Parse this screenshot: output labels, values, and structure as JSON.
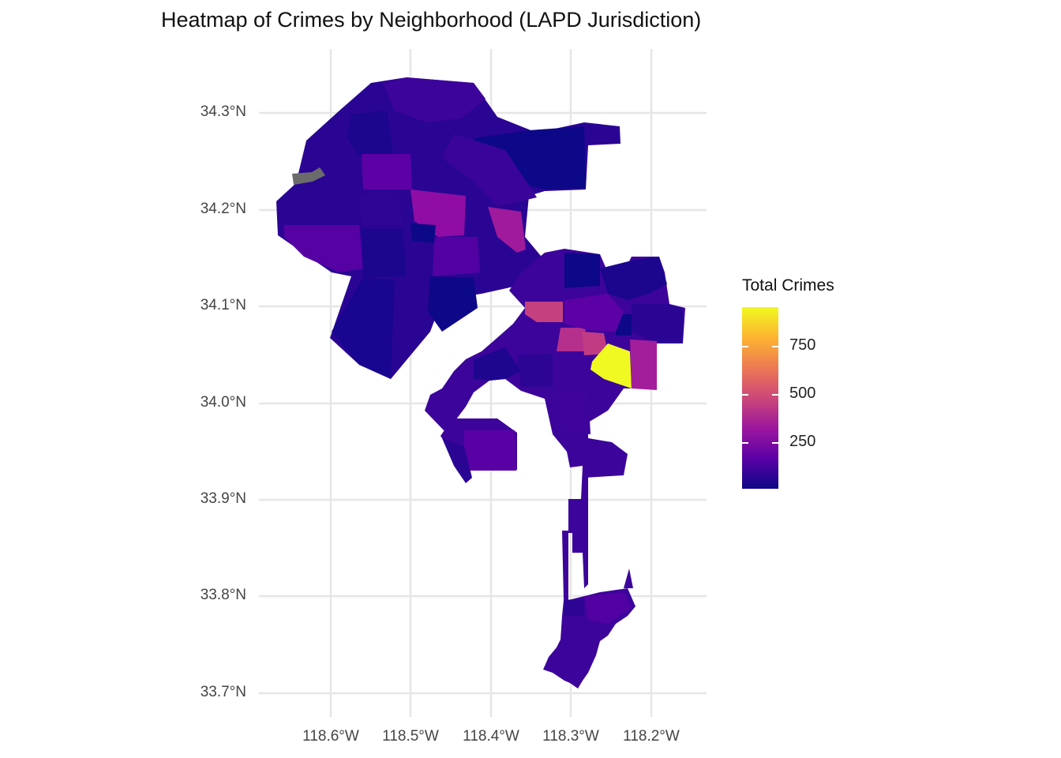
{
  "title": "Heatmap of Crimes by Neighborhood (LAPD Jurisdiction)",
  "axes": {
    "y_ticks": [
      "34.3°N",
      "34.2°N",
      "34.1°N",
      "34.0°N",
      "33.9°N",
      "33.8°N",
      "33.7°N"
    ],
    "x_ticks": [
      "118.6°W",
      "118.5°W",
      "118.4°W",
      "118.3°W",
      "118.2°W"
    ]
  },
  "legend": {
    "title": "Total Crimes",
    "labels": [
      "750",
      "500",
      "250"
    ]
  },
  "colors": {
    "scale": [
      "#0d0887",
      "#5c01a6",
      "#9c179e",
      "#cc4778",
      "#ed7953",
      "#fdb42f",
      "#f0f921"
    ],
    "na": "#6b6b6b",
    "grid": "#e6e6e6"
  },
  "chart_data": {
    "type": "heatmap",
    "title": "Heatmap of Crimes by Neighborhood (LAPD Jurisdiction)",
    "xlabel": "",
    "ylabel": "",
    "x_ticks": [
      "118.6°W",
      "118.5°W",
      "118.4°W",
      "118.3°W",
      "118.2°W"
    ],
    "y_ticks": [
      "34.3°N",
      "34.2°N",
      "34.1°N",
      "34.0°N",
      "33.9°N",
      "33.8°N",
      "33.7°N"
    ],
    "lon_range": [
      -118.67,
      -118.14
    ],
    "lat_range": [
      33.7,
      34.34
    ],
    "color_scale": "plasma",
    "value_range": [
      0,
      950
    ],
    "legend_title": "Total Crimes",
    "legend_ticks": [
      250,
      500,
      750
    ],
    "legend_position": "right",
    "grid": true,
    "regions": [
      {
        "lon": -118.24,
        "lat": 34.04,
        "value": 950
      },
      {
        "lon": -118.33,
        "lat": 34.097,
        "value": 420
      },
      {
        "lon": -118.27,
        "lat": 34.063,
        "value": 420
      },
      {
        "lon": -118.3,
        "lat": 34.066,
        "value": 400
      },
      {
        "lon": -118.21,
        "lat": 34.04,
        "value": 300
      },
      {
        "lon": -118.45,
        "lat": 34.195,
        "value": 330
      },
      {
        "lon": -118.37,
        "lat": 34.185,
        "value": 320
      },
      {
        "lon": -118.43,
        "lat": 34.14,
        "value": 210
      },
      {
        "lon": -118.47,
        "lat": 34.23,
        "value": 220
      },
      {
        "lon": -118.39,
        "lat": 33.95,
        "value": 230
      },
      {
        "lon": -118.28,
        "lat": 33.75,
        "value": 180
      },
      {
        "lon": -118.6,
        "lat": 34.2,
        "value": 200
      },
      {
        "lon": -118.55,
        "lat": 34.1,
        "value": 60
      },
      {
        "lon": -118.41,
        "lat": 34.24,
        "value": 40
      },
      {
        "lon": -118.2,
        "lat": 34.09,
        "value": 80
      },
      {
        "lon": -118.63,
        "lat": 34.23,
        "value": null
      }
    ]
  }
}
